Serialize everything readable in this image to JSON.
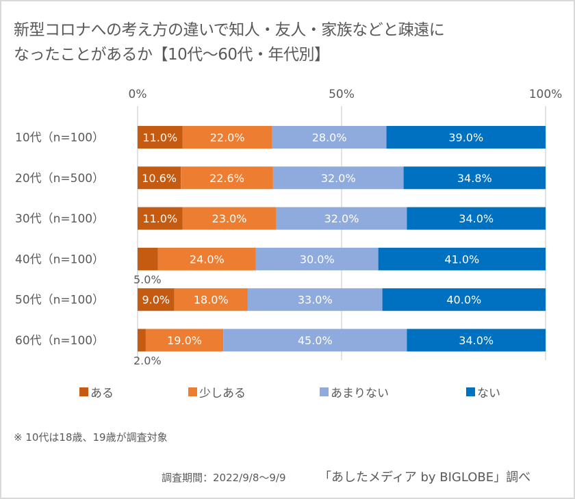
{
  "title": {
    "line1": "新型コロナへの考え方の違いで知人・友人・家族などと疎遠に",
    "line2": "なったことがあるか【10代～60代・年代別】"
  },
  "colors": {
    "aru": "#c55a11",
    "sukoshi_aru": "#ed7d31",
    "amari_nai": "#8faadc",
    "nai": "#0070c0",
    "grid": "#d9d9d9",
    "text": "#595959"
  },
  "chart_data": {
    "type": "bar",
    "orientation": "horizontal",
    "stacked": "percent",
    "title": "新型コロナへの考え方の違いで知人・友人・家族などと疎遠になったことがあるか【10代～60代・年代別】",
    "xlabel": "",
    "ylabel": "",
    "xlim": [
      0,
      100
    ],
    "x_ticks": [
      "0%",
      "50%",
      "100%"
    ],
    "x_tick_values": [
      0,
      50,
      100
    ],
    "x_axis_position": "top",
    "grid": true,
    "legend_position": "bottom",
    "categories": [
      "10代（n=100）",
      "20代（n=500）",
      "30代（n=100）",
      "40代（n=100）",
      "50代（n=100）",
      "60代（n=100）"
    ],
    "series": [
      {
        "name": "ある",
        "color_key": "aru",
        "values": [
          11.0,
          10.6,
          11.0,
          5.0,
          9.0,
          2.0
        ],
        "labels": [
          "11.0%",
          "10.6%",
          "11.0%",
          "5.0%",
          "9.0%",
          "2.0%"
        ],
        "label_outside": [
          false,
          false,
          false,
          true,
          false,
          true
        ]
      },
      {
        "name": "少しある",
        "color_key": "sukoshi_aru",
        "values": [
          22.0,
          22.6,
          23.0,
          24.0,
          18.0,
          19.0
        ],
        "labels": [
          "22.0%",
          "22.6%",
          "23.0%",
          "24.0%",
          "18.0%",
          "19.0%"
        ]
      },
      {
        "name": "あまりない",
        "color_key": "amari_nai",
        "values": [
          28.0,
          32.0,
          32.0,
          30.0,
          33.0,
          45.0
        ],
        "labels": [
          "28.0%",
          "32.0%",
          "32.0%",
          "30.0%",
          "33.0%",
          "45.0%"
        ]
      },
      {
        "name": "ない",
        "color_key": "nai",
        "values": [
          39.0,
          34.8,
          34.0,
          41.0,
          40.0,
          34.0
        ],
        "labels": [
          "39.0%",
          "34.8%",
          "34.0%",
          "41.0%",
          "40.0%",
          "34.0%"
        ]
      }
    ]
  },
  "legend": [
    {
      "label": "ある",
      "color_key": "aru"
    },
    {
      "label": "少しある",
      "color_key": "sukoshi_aru"
    },
    {
      "label": "あまりない",
      "color_key": "amari_nai"
    },
    {
      "label": "ない",
      "color_key": "nai"
    }
  ],
  "footer": {
    "note": "※ 10代は18歳、19歳が調査対象",
    "period": "調査期間：2022/9/8～9/9",
    "source": "「あしたメディア by BIGLOBE」調べ"
  }
}
